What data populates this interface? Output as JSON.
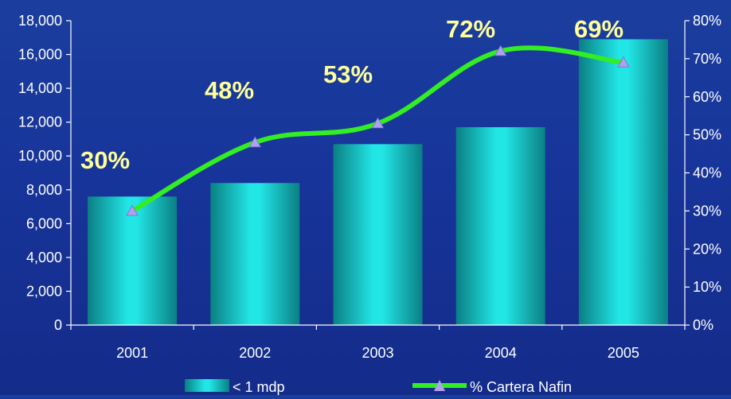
{
  "chart_data": {
    "type": "bar",
    "categories": [
      "2001",
      "2002",
      "2003",
      "2004",
      "2005"
    ],
    "series": [
      {
        "name": "< 1 mdp",
        "type": "bar",
        "axis": "left",
        "values": [
          7600,
          8400,
          10700,
          11700,
          16900
        ]
      },
      {
        "name": "% Cartera Nafin",
        "type": "line",
        "axis": "right",
        "values": [
          30,
          48,
          53,
          72,
          69
        ]
      }
    ],
    "left_axis": {
      "min": 0,
      "max": 18000,
      "step": 2000,
      "ticks": [
        "0",
        "2,000",
        "4,000",
        "6,000",
        "8,000",
        "10,000",
        "12,000",
        "14,000",
        "16,000",
        "18,000"
      ]
    },
    "right_axis": {
      "min": 0,
      "max": 80,
      "step": 10,
      "ticks": [
        "0%",
        "10%",
        "20%",
        "30%",
        "40%",
        "50%",
        "60%",
        "70%",
        "80%"
      ]
    },
    "data_labels": [
      "30%",
      "48%",
      "53%",
      "72%",
      "69%"
    ],
    "legend": {
      "position": "bottom",
      "items": [
        "< 1 mdp",
        "% Cartera Nafin"
      ]
    },
    "colors": {
      "bar": "#22e0e0",
      "line": "#33ee22",
      "marker": "#b0a0ee",
      "label": "#ffff99",
      "background": "#17349a",
      "text": "#ffffff"
    }
  }
}
